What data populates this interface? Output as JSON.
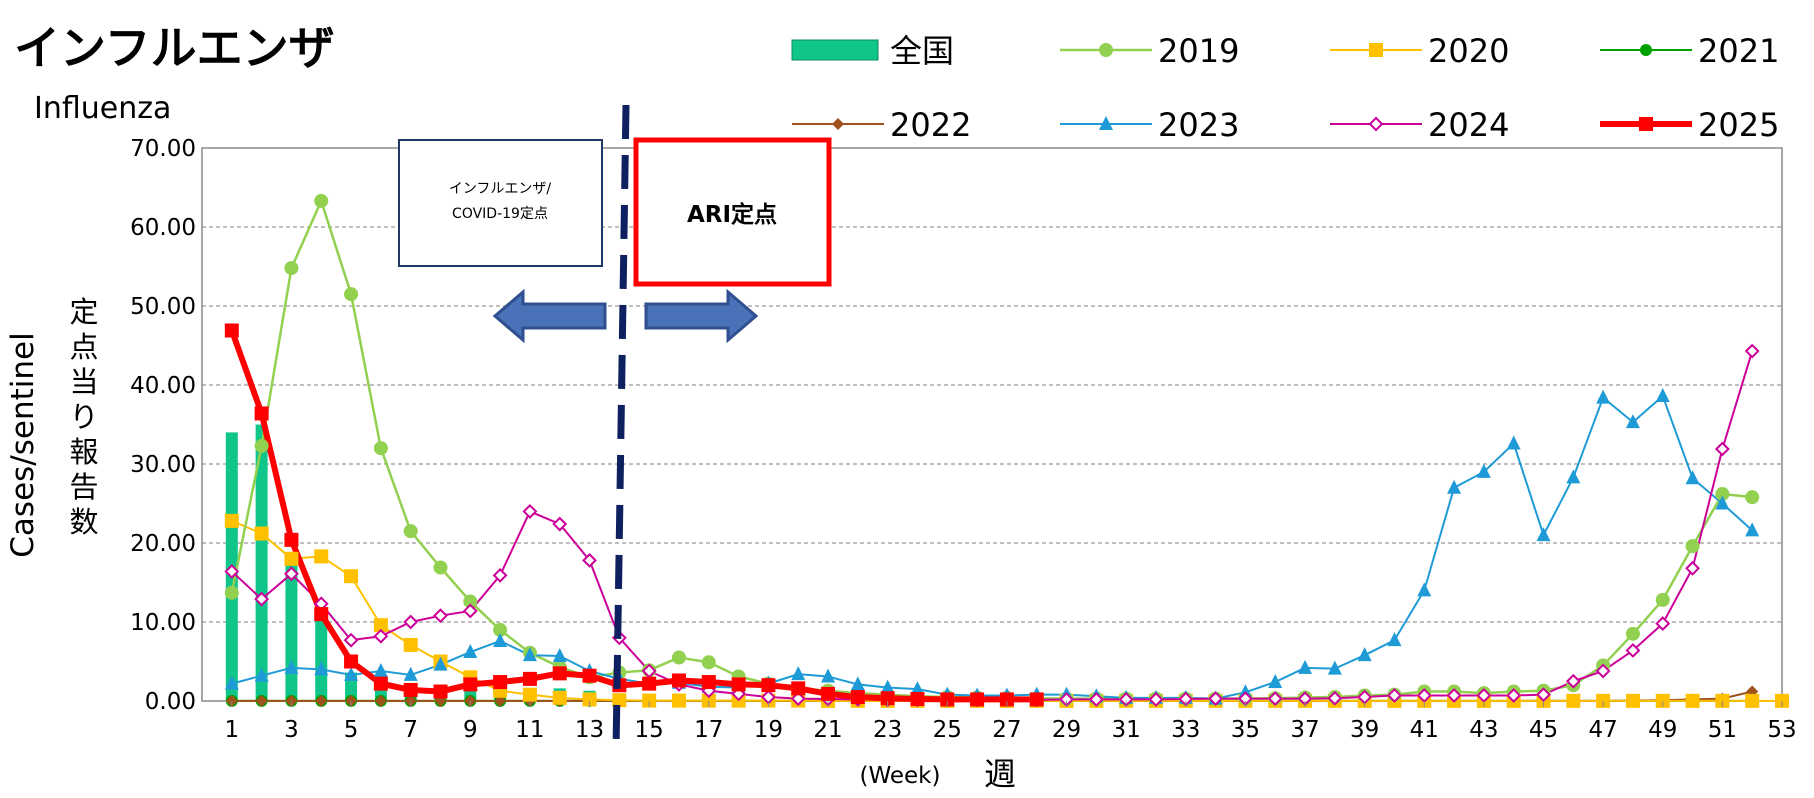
{
  "colors": {
    "national": "#10C58A",
    "s2019": "#92D050",
    "s2020": "#FFC000",
    "s2021": "#00A000",
    "s2022": "#A0521C",
    "s2023": "#1E9BD7",
    "s2024": "#CC0099",
    "s2025": "#FF0000",
    "arrow": "#4472C4",
    "divider": "#0F2060"
  },
  "chart_data": {
    "type": "line",
    "title": "インフルエンザ",
    "subtitle": "Influenza",
    "ylabel": "Cases/sentinel",
    "ylabel_jp": "定点当り報告数",
    "xlabel": "(Week)",
    "xlabel_jp": "週",
    "ylim": [
      0,
      70
    ],
    "yticks": [
      "0.00",
      "10.00",
      "20.00",
      "30.00",
      "40.00",
      "50.00",
      "60.00",
      "70.00"
    ],
    "xlim": [
      0,
      53
    ],
    "xticks": [
      "1",
      "3",
      "5",
      "7",
      "9",
      "11",
      "13",
      "15",
      "17",
      "19",
      "21",
      "23",
      "25",
      "27",
      "29",
      "31",
      "33",
      "35",
      "37",
      "39",
      "41",
      "43",
      "45",
      "47",
      "49",
      "51",
      "53"
    ],
    "grid": true,
    "annotations": {
      "left_box": "インフルエンザ/COVID-19定点",
      "right_box": "ARI定点"
    },
    "national": {
      "name": "全国",
      "type": "bar",
      "weeks": [
        1,
        2,
        3,
        4,
        5,
        6,
        7,
        8,
        9,
        10,
        11,
        12,
        13
      ],
      "values": [
        34.0,
        35.0,
        17.5,
        11.0,
        3.6,
        2.2,
        1.8,
        1.6,
        1.5,
        1.5,
        1.3,
        1.6,
        1.3
      ]
    },
    "series": [
      {
        "name": "2019",
        "marker": "circle",
        "values": [
          13.7,
          32.3,
          54.8,
          63.3,
          51.5,
          32.0,
          21.5,
          16.9,
          12.6,
          9.0,
          6.1,
          4.3,
          3.0,
          3.6,
          3.9,
          5.5,
          4.9,
          3.1,
          2.2,
          1.6,
          1.3,
          1.0,
          0.8,
          0.6,
          0.5,
          0.45,
          0.4,
          0.35,
          0.3,
          0.3,
          0.3,
          0.3,
          0.3,
          0.3,
          0.3,
          0.35,
          0.45,
          0.5,
          0.7,
          0.8,
          1.2,
          1.2,
          1.0,
          1.2,
          1.3,
          2.0,
          4.5,
          8.5,
          12.8,
          19.6,
          26.2,
          25.8
        ]
      },
      {
        "name": "2020",
        "marker": "square",
        "values": [
          22.8,
          21.2,
          18.0,
          18.3,
          15.8,
          9.6,
          7.1,
          5.0,
          3.0,
          1.3,
          0.8,
          0.4,
          0.2,
          0.1,
          0.05,
          0.05,
          0.05,
          0.05,
          0.05,
          0.05,
          0.02,
          0.02,
          0.02,
          0.02,
          0.02,
          0.02,
          0.02,
          0.02,
          0.02,
          0.02,
          0.02,
          0.02,
          0.02,
          0.02,
          0.02,
          0.02,
          0.02,
          0.02,
          0.02,
          0.02,
          0.02,
          0.02,
          0.02,
          0.02,
          0.02,
          0.02,
          0.02,
          0.02,
          0.02,
          0.02,
          0.02,
          0.02,
          0.02
        ]
      },
      {
        "name": "2021",
        "marker": "circle",
        "values": [
          0.01,
          0.01,
          0.01,
          0.01,
          0.01,
          0.01,
          0.01,
          0.01,
          0.01,
          0.01,
          0.01,
          0.01,
          0.01,
          0.01,
          0.01,
          0.01,
          0.01,
          0.01,
          0.01,
          0.01,
          0.01,
          0.01,
          0.01,
          0.01,
          0.01,
          0.01,
          0.01,
          0.01,
          0.01,
          0.01,
          0.01,
          0.01,
          0.01,
          0.01,
          0.01,
          0.01,
          0.01,
          0.01,
          0.01,
          0.01,
          0.01,
          0.01,
          0.01,
          0.01,
          0.01,
          0.01,
          0.01,
          0.01,
          0.01,
          0.01,
          0.01,
          0.01
        ]
      },
      {
        "name": "2022",
        "marker": "diamond",
        "values": [
          0.02,
          0.02,
          0.02,
          0.02,
          0.02,
          0.02,
          0.02,
          0.02,
          0.02,
          0.02,
          0.02,
          0.02,
          0.02,
          0.02,
          0.02,
          0.02,
          0.02,
          0.02,
          0.02,
          0.02,
          0.02,
          0.02,
          0.02,
          0.02,
          0.02,
          0.02,
          0.02,
          0.02,
          0.02,
          0.02,
          0.02,
          0.02,
          0.02,
          0.02,
          0.02,
          0.02,
          0.02,
          0.02,
          0.02,
          0.02,
          0.02,
          0.02,
          0.02,
          0.02,
          0.02,
          0.02,
          0.02,
          0.05,
          0.1,
          0.2,
          0.3,
          1.2
        ]
      },
      {
        "name": "2023",
        "marker": "triangle",
        "values": [
          2.2,
          3.2,
          4.2,
          4.0,
          3.3,
          3.8,
          3.3,
          4.6,
          6.2,
          7.6,
          5.8,
          5.7,
          3.8,
          2.8,
          2.2,
          2.3,
          1.8,
          1.7,
          2.2,
          3.4,
          3.1,
          2.1,
          1.7,
          1.5,
          0.8,
          0.7,
          0.7,
          0.8,
          0.8,
          0.6,
          0.4,
          0.4,
          0.4,
          0.3,
          1.1,
          2.4,
          4.2,
          4.1,
          5.8,
          7.7,
          14.0,
          27.0,
          29.0,
          32.6,
          21.0,
          28.3,
          38.4,
          35.3,
          38.6,
          28.2,
          25.0,
          21.6
        ]
      },
      {
        "name": "2024",
        "marker": "open-diamond",
        "values": [
          16.4,
          12.9,
          16.1,
          12.3,
          7.7,
          8.2,
          10.0,
          10.8,
          11.4,
          15.9,
          24.0,
          22.4,
          17.8,
          8.0,
          3.8,
          2.1,
          1.3,
          0.9,
          0.5,
          0.3,
          0.25,
          0.2,
          0.15,
          0.15,
          0.15,
          0.15,
          0.15,
          0.15,
          0.2,
          0.2,
          0.2,
          0.2,
          0.25,
          0.3,
          0.3,
          0.3,
          0.3,
          0.35,
          0.5,
          0.7,
          0.7,
          0.7,
          0.7,
          0.7,
          0.8,
          2.5,
          3.8,
          6.4,
          9.8,
          16.8,
          31.9,
          44.3
        ]
      },
      {
        "name": "2025",
        "marker": "square",
        "values": [
          46.9,
          36.4,
          20.4,
          11.0,
          5.0,
          2.2,
          1.4,
          1.2,
          2.1,
          2.4,
          2.8,
          3.5,
          3.2,
          2.0,
          2.2,
          2.6,
          2.4,
          2.1,
          2.0,
          1.6,
          0.9,
          0.5,
          0.35,
          0.25,
          0.2,
          0.2,
          0.2,
          0.2
        ]
      }
    ]
  }
}
